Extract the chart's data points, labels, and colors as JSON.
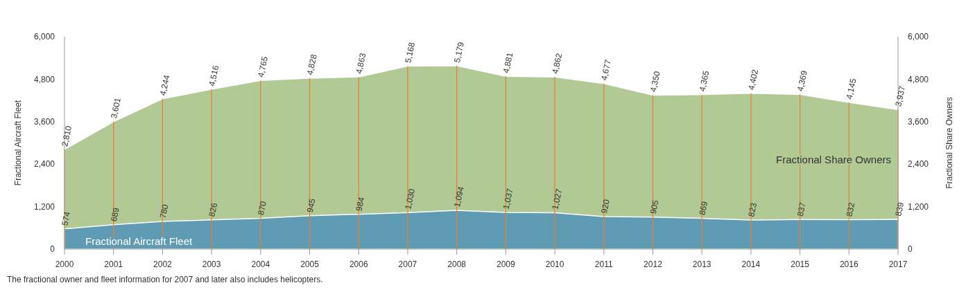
{
  "chart_data": {
    "type": "area",
    "x": [
      2000,
      2001,
      2002,
      2003,
      2004,
      2005,
      2006,
      2007,
      2008,
      2009,
      2010,
      2011,
      2012,
      2013,
      2014,
      2015,
      2016,
      2017
    ],
    "xlim": [
      2000,
      2017
    ],
    "xticks": [
      2000,
      2001,
      2002,
      2003,
      2004,
      2005,
      2006,
      2007,
      2008,
      2009,
      2010,
      2011,
      2012,
      2013,
      2014,
      2015,
      2016,
      2017
    ],
    "ylabel": "Fractional Aircraft Fleet",
    "y2label": "Fractional Share Owners",
    "ylim": [
      0,
      6000
    ],
    "yticks": [
      {
        "value": 0,
        "label": "0"
      },
      {
        "value": 1200,
        "label": "1,200"
      },
      {
        "value": 2400,
        "label": "2,400"
      },
      {
        "value": 3600,
        "label": "3,600"
      },
      {
        "value": 4800,
        "label": "4,800"
      },
      {
        "value": 6000,
        "label": "6,000"
      }
    ],
    "y2lim": [
      0,
      6000
    ],
    "y2ticks": [
      {
        "value": 0,
        "label": "0"
      },
      {
        "value": 1200,
        "label": "1,200"
      },
      {
        "value": 2400,
        "label": "2,400"
      },
      {
        "value": 3600,
        "label": "3,600"
      },
      {
        "value": 4800,
        "label": "4,800"
      },
      {
        "value": 6000,
        "label": "6,000"
      }
    ],
    "series": [
      {
        "name": "Fractional Share Owners",
        "color": "#b1c994",
        "values": [
          2810,
          3601,
          4244,
          4516,
          4765,
          4828,
          4863,
          5168,
          5179,
          4881,
          4862,
          4677,
          4350,
          4365,
          4402,
          4369,
          4145,
          3937
        ],
        "value_labels": [
          "2,810",
          "3,601",
          "4,244",
          "4,516",
          "4,765",
          "4,828",
          "4,863",
          "5,168",
          "5,179",
          "4,881",
          "4,862",
          "4,677",
          "4,350",
          "4,365",
          "4,402",
          "4,369",
          "4,145",
          "3,937"
        ]
      },
      {
        "name": "Fractional Aircraft Fleet",
        "color": "#5f9bb3",
        "values": [
          574,
          689,
          780,
          826,
          870,
          945,
          984,
          1030,
          1094,
          1037,
          1027,
          920,
          905,
          869,
          823,
          837,
          832,
          839
        ],
        "value_labels": [
          "574",
          "689",
          "780",
          "826",
          "870",
          "945",
          "984",
          "1,030",
          "1,094",
          "1,037",
          "1,027",
          "920",
          "905",
          "869",
          "823",
          "837",
          "832",
          "839"
        ]
      }
    ],
    "grid": "x",
    "annotations": [
      "The fractional owner and fleet information for 2007 and later also includes helicopters."
    ]
  }
}
